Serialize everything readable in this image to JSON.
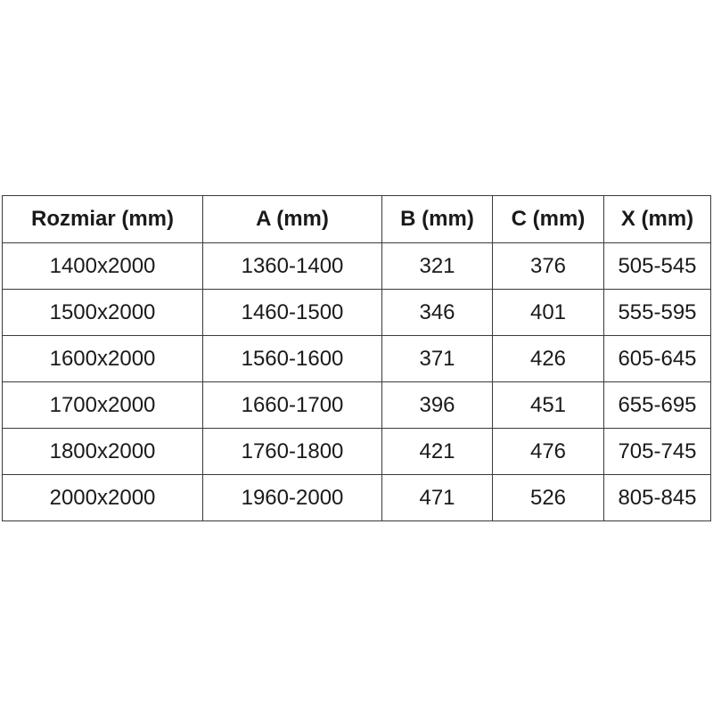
{
  "table": {
    "headers": [
      "Rozmiar (mm)",
      "A (mm)",
      "B (mm)",
      "C (mm)",
      "X (mm)"
    ],
    "rows": [
      [
        "1400x2000",
        "1360-1400",
        "321",
        "376",
        "505-545"
      ],
      [
        "1500x2000",
        "1460-1500",
        "346",
        "401",
        "555-595"
      ],
      [
        "1600x2000",
        "1560-1600",
        "371",
        "426",
        "605-645"
      ],
      [
        "1700x2000",
        "1660-1700",
        "396",
        "451",
        "655-695"
      ],
      [
        "1800x2000",
        "1760-1800",
        "421",
        "476",
        "705-745"
      ],
      [
        "2000x2000",
        "1960-2000",
        "471",
        "526",
        "805-845"
      ]
    ]
  },
  "colors": {
    "background": "#ffffff",
    "border": "#3a3a3a",
    "text": "#1a1a1a"
  }
}
